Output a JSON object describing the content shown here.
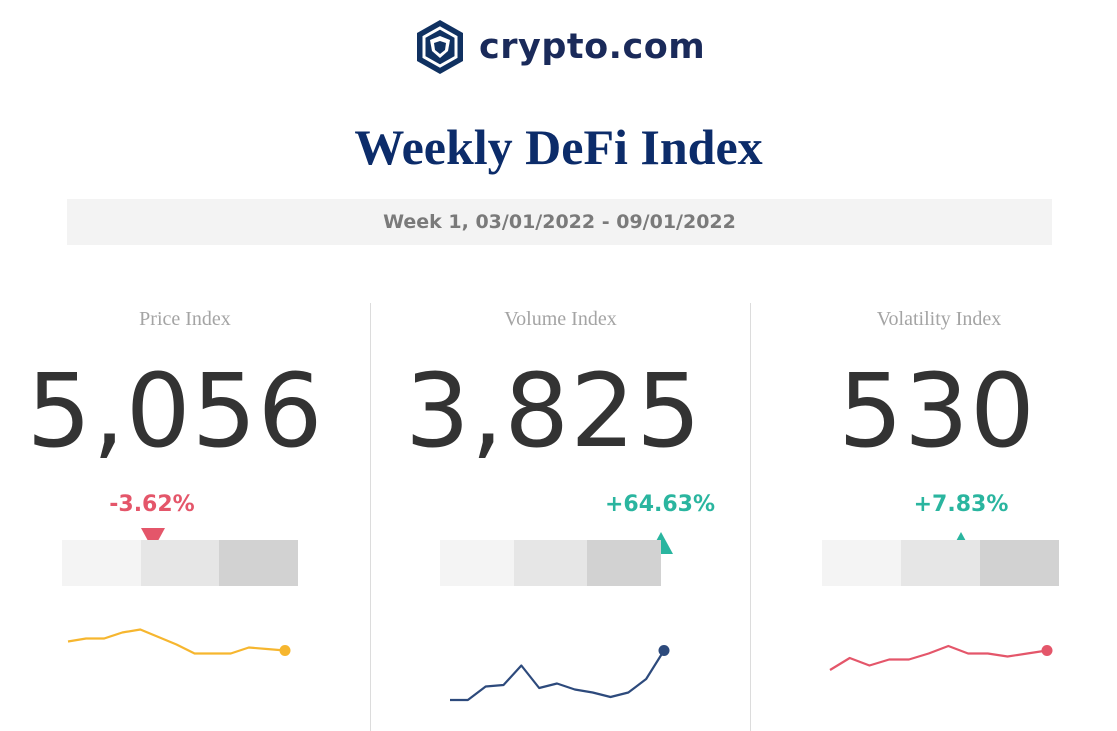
{
  "header": {
    "brand": "crypto.com",
    "title": "Weekly DeFi Index",
    "week": "Week 1, 03/01/2022 - 09/01/2022"
  },
  "colors": {
    "scale_light": "#f4f4f4",
    "scale_mid": "#e6e6e6",
    "scale_dark": "#d2d2d2",
    "negative": "#e4566a",
    "positive": "#2ab59f"
  },
  "panels": [
    {
      "label": "Price Index",
      "value": "5,056",
      "change": "-3.62%",
      "direction": "down"
    },
    {
      "label": "Volume Index",
      "value": "3,825",
      "change": "+64.63%",
      "direction": "up"
    },
    {
      "label": "Volatility Index",
      "value": "530",
      "change": "+7.83%",
      "direction": "up"
    }
  ],
  "chart_data": [
    {
      "type": "line",
      "series": [
        {
          "color": "#f6b62f",
          "values": [
            49,
            51,
            51,
            55,
            57,
            52,
            47,
            41,
            41,
            41,
            45,
            44,
            43
          ]
        }
      ],
      "marker_position": 0.38,
      "end_marker": true
    },
    {
      "type": "line",
      "series": [
        {
          "color": "#2d4a7c",
          "values": [
            10,
            10,
            19,
            20,
            33,
            18,
            21,
            17,
            15,
            12,
            15,
            24,
            43
          ]
        }
      ],
      "marker_position": 0.94,
      "end_marker": true
    },
    {
      "type": "line",
      "series": [
        {
          "color": "#e4566a",
          "values": [
            30,
            38,
            33,
            37,
            37,
            41,
            46,
            41,
            41,
            39,
            41,
            43
          ]
        }
      ],
      "marker_position": 0.59,
      "end_marker": true
    }
  ]
}
